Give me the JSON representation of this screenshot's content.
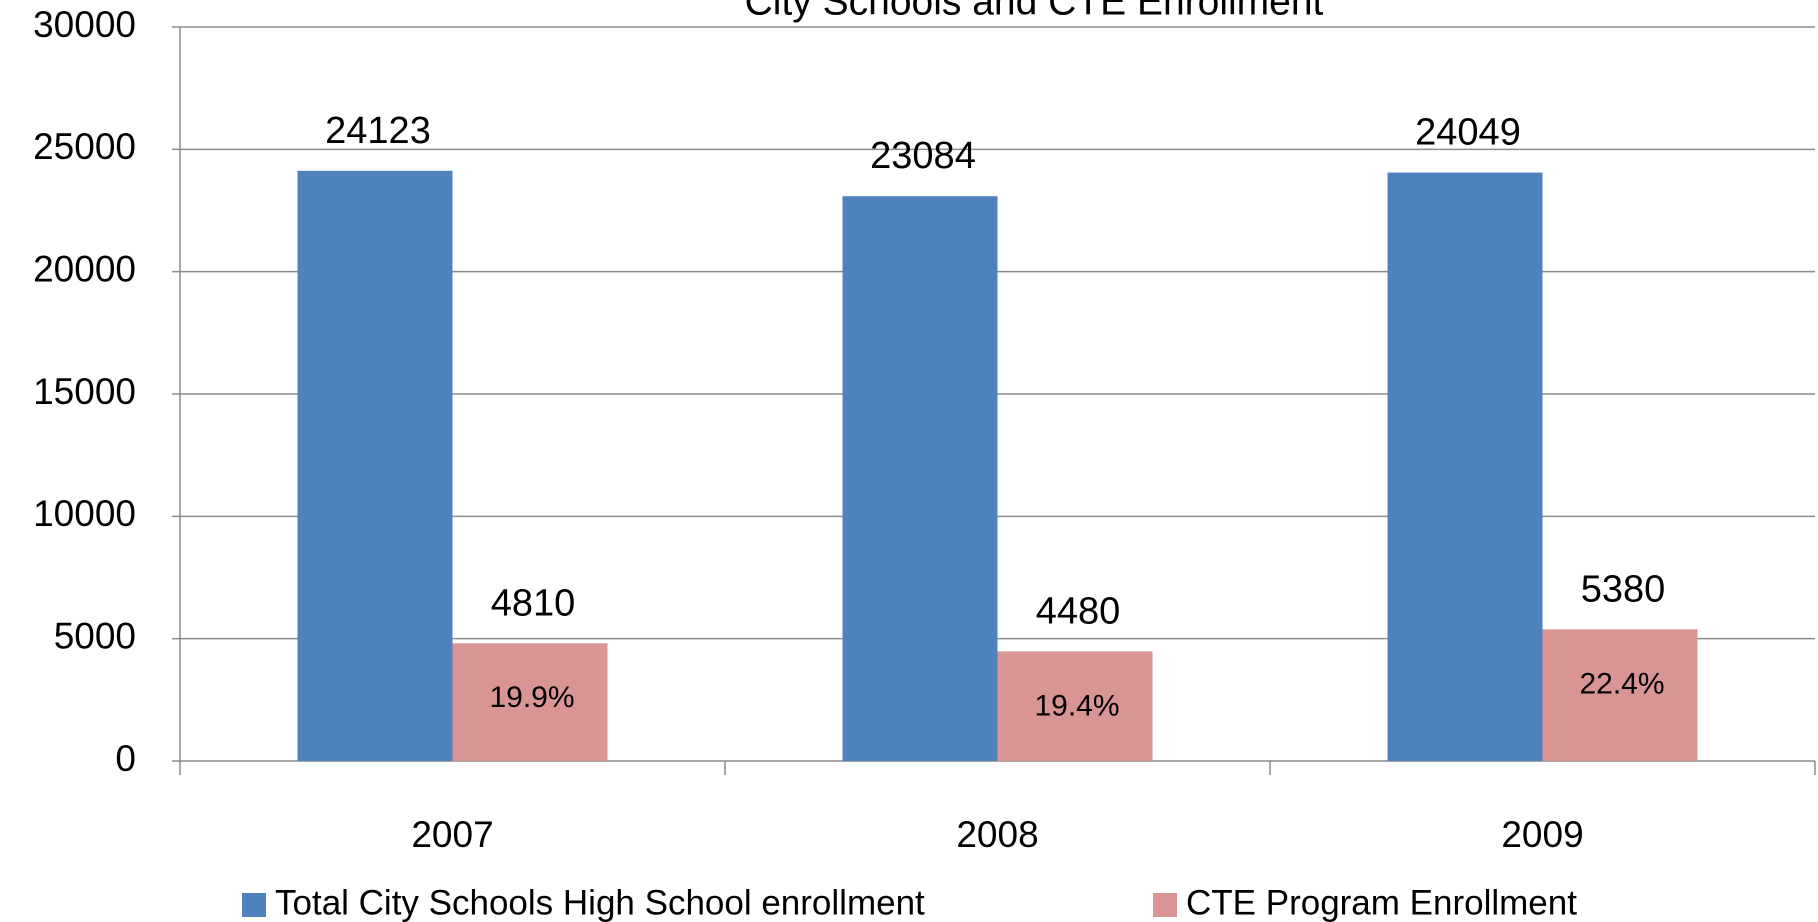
{
  "chart_data": {
    "type": "bar",
    "title": "City Schools and CTE Enrollment",
    "categories": [
      "2007",
      "2008",
      "2009"
    ],
    "series": [
      {
        "name": "Total City Schools High School enrollment",
        "color": "#4f81bd",
        "values": [
          24123,
          23084,
          24049
        ]
      },
      {
        "name": "CTE Program Enrollment",
        "color": "#d99594",
        "values": [
          4810,
          4480,
          5380
        ],
        "inner_labels": [
          "19.9%",
          "19.4%",
          "22.4%"
        ]
      }
    ],
    "ylim": [
      0,
      30000
    ],
    "yticks": [
      0,
      5000,
      10000,
      15000,
      20000,
      25000,
      30000
    ],
    "grid": true,
    "legend": "bottom"
  }
}
